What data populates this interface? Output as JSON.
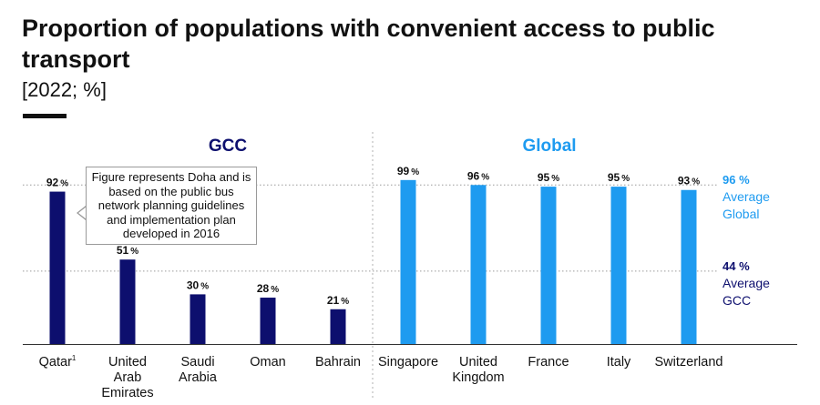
{
  "chart_data": {
    "type": "bar",
    "title": "Proportion of populations with convenient access to public transport",
    "subtitle": "[2022; %]",
    "groups": [
      {
        "name": "GCC",
        "color": "#0d0f6e",
        "categories": [
          "Qatar",
          "United Arab Emirates",
          "Saudi Arabia",
          "Oman",
          "Bahrain"
        ]
      },
      {
        "name": "Global",
        "color": "#1e9bf0",
        "categories": [
          "Singapore",
          "United Kingdom",
          "France",
          "Italy",
          "Switzerland"
        ]
      }
    ],
    "categories": [
      "Qatar",
      "United Arab Emirates",
      "Saudi Arabia",
      "Oman",
      "Bahrain",
      "Singapore",
      "United Kingdom",
      "France",
      "Italy",
      "Switzerland"
    ],
    "category_labels": [
      {
        "lines": [
          "Qatar"
        ],
        "sup": "1"
      },
      {
        "lines": [
          "United",
          "Arab",
          "Emirates"
        ]
      },
      {
        "lines": [
          "Saudi",
          "Arabia"
        ]
      },
      {
        "lines": [
          "Oman"
        ]
      },
      {
        "lines": [
          "Bahrain"
        ]
      },
      {
        "lines": [
          "Singapore"
        ]
      },
      {
        "lines": [
          "United",
          "Kingdom"
        ]
      },
      {
        "lines": [
          "France"
        ]
      },
      {
        "lines": [
          "Italy"
        ]
      },
      {
        "lines": [
          "Switzerland"
        ]
      }
    ],
    "values": [
      92,
      51,
      30,
      28,
      21,
      99,
      96,
      95,
      95,
      93
    ],
    "unit": "%",
    "ylim": [
      0,
      100
    ],
    "reference_lines": [
      {
        "value": 96,
        "value_label": "96 %",
        "lines": [
          "Average",
          "Global"
        ],
        "color": "#1e9bf0"
      },
      {
        "value": 44,
        "value_label": "44 %",
        "lines": [
          "Average",
          "GCC"
        ],
        "color": "#0d0f6e"
      }
    ],
    "annotation": {
      "target": "Qatar",
      "text": "Figure represents Doha and is based on the public bus network planning guidelines and implementation plan developed in 2016"
    }
  }
}
